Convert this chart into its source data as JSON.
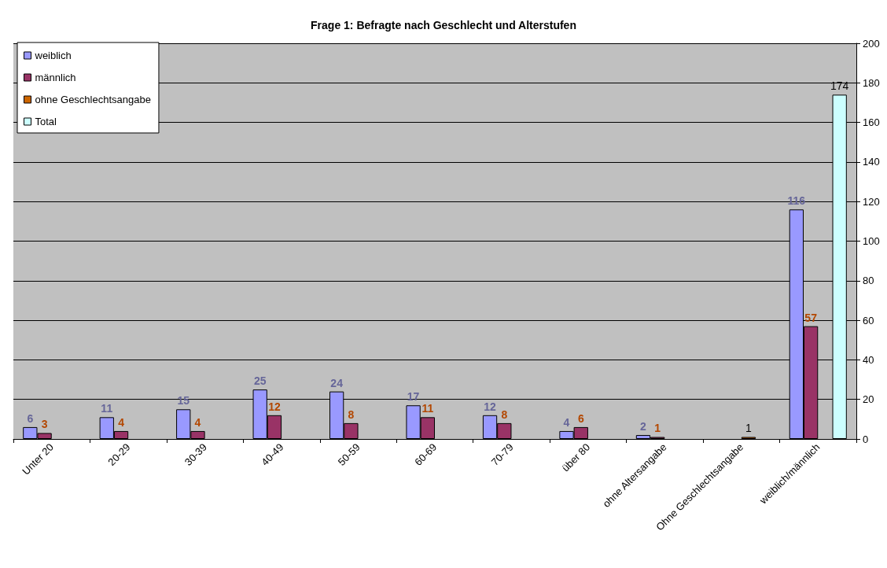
{
  "chart_data": {
    "type": "bar",
    "title": "Frage 1: Befragte nach Geschlecht und Alterstufen",
    "categories": [
      "Unter 20",
      "20-29",
      "30-39",
      "40-49",
      "50-59",
      "60-69",
      "70-79",
      "über 80",
      "ohne Altersangabe",
      "Ohne Geschlechtsangabe",
      "weiblich/männlich"
    ],
    "series": [
      {
        "name": "weiblich",
        "color": "#9999ff",
        "values": [
          6,
          11,
          15,
          25,
          24,
          17,
          12,
          4,
          2,
          null,
          116
        ]
      },
      {
        "name": "männlich",
        "color": "#993366",
        "values": [
          3,
          4,
          4,
          12,
          8,
          11,
          8,
          6,
          1,
          null,
          57
        ]
      },
      {
        "name": "ohne Geschlechtsangabe",
        "color": "#cc6600",
        "values": [
          null,
          null,
          null,
          null,
          null,
          null,
          null,
          null,
          null,
          1,
          null
        ]
      },
      {
        "name": "Total",
        "color": "#ccffff",
        "values": [
          null,
          null,
          null,
          null,
          null,
          null,
          null,
          null,
          null,
          null,
          174
        ]
      }
    ],
    "ylim": [
      0,
      200
    ],
    "yticks": [
      0,
      20,
      40,
      60,
      80,
      100,
      120,
      140,
      160,
      180,
      200
    ],
    "grid": "y",
    "legend": "top left",
    "data_labels": true
  }
}
